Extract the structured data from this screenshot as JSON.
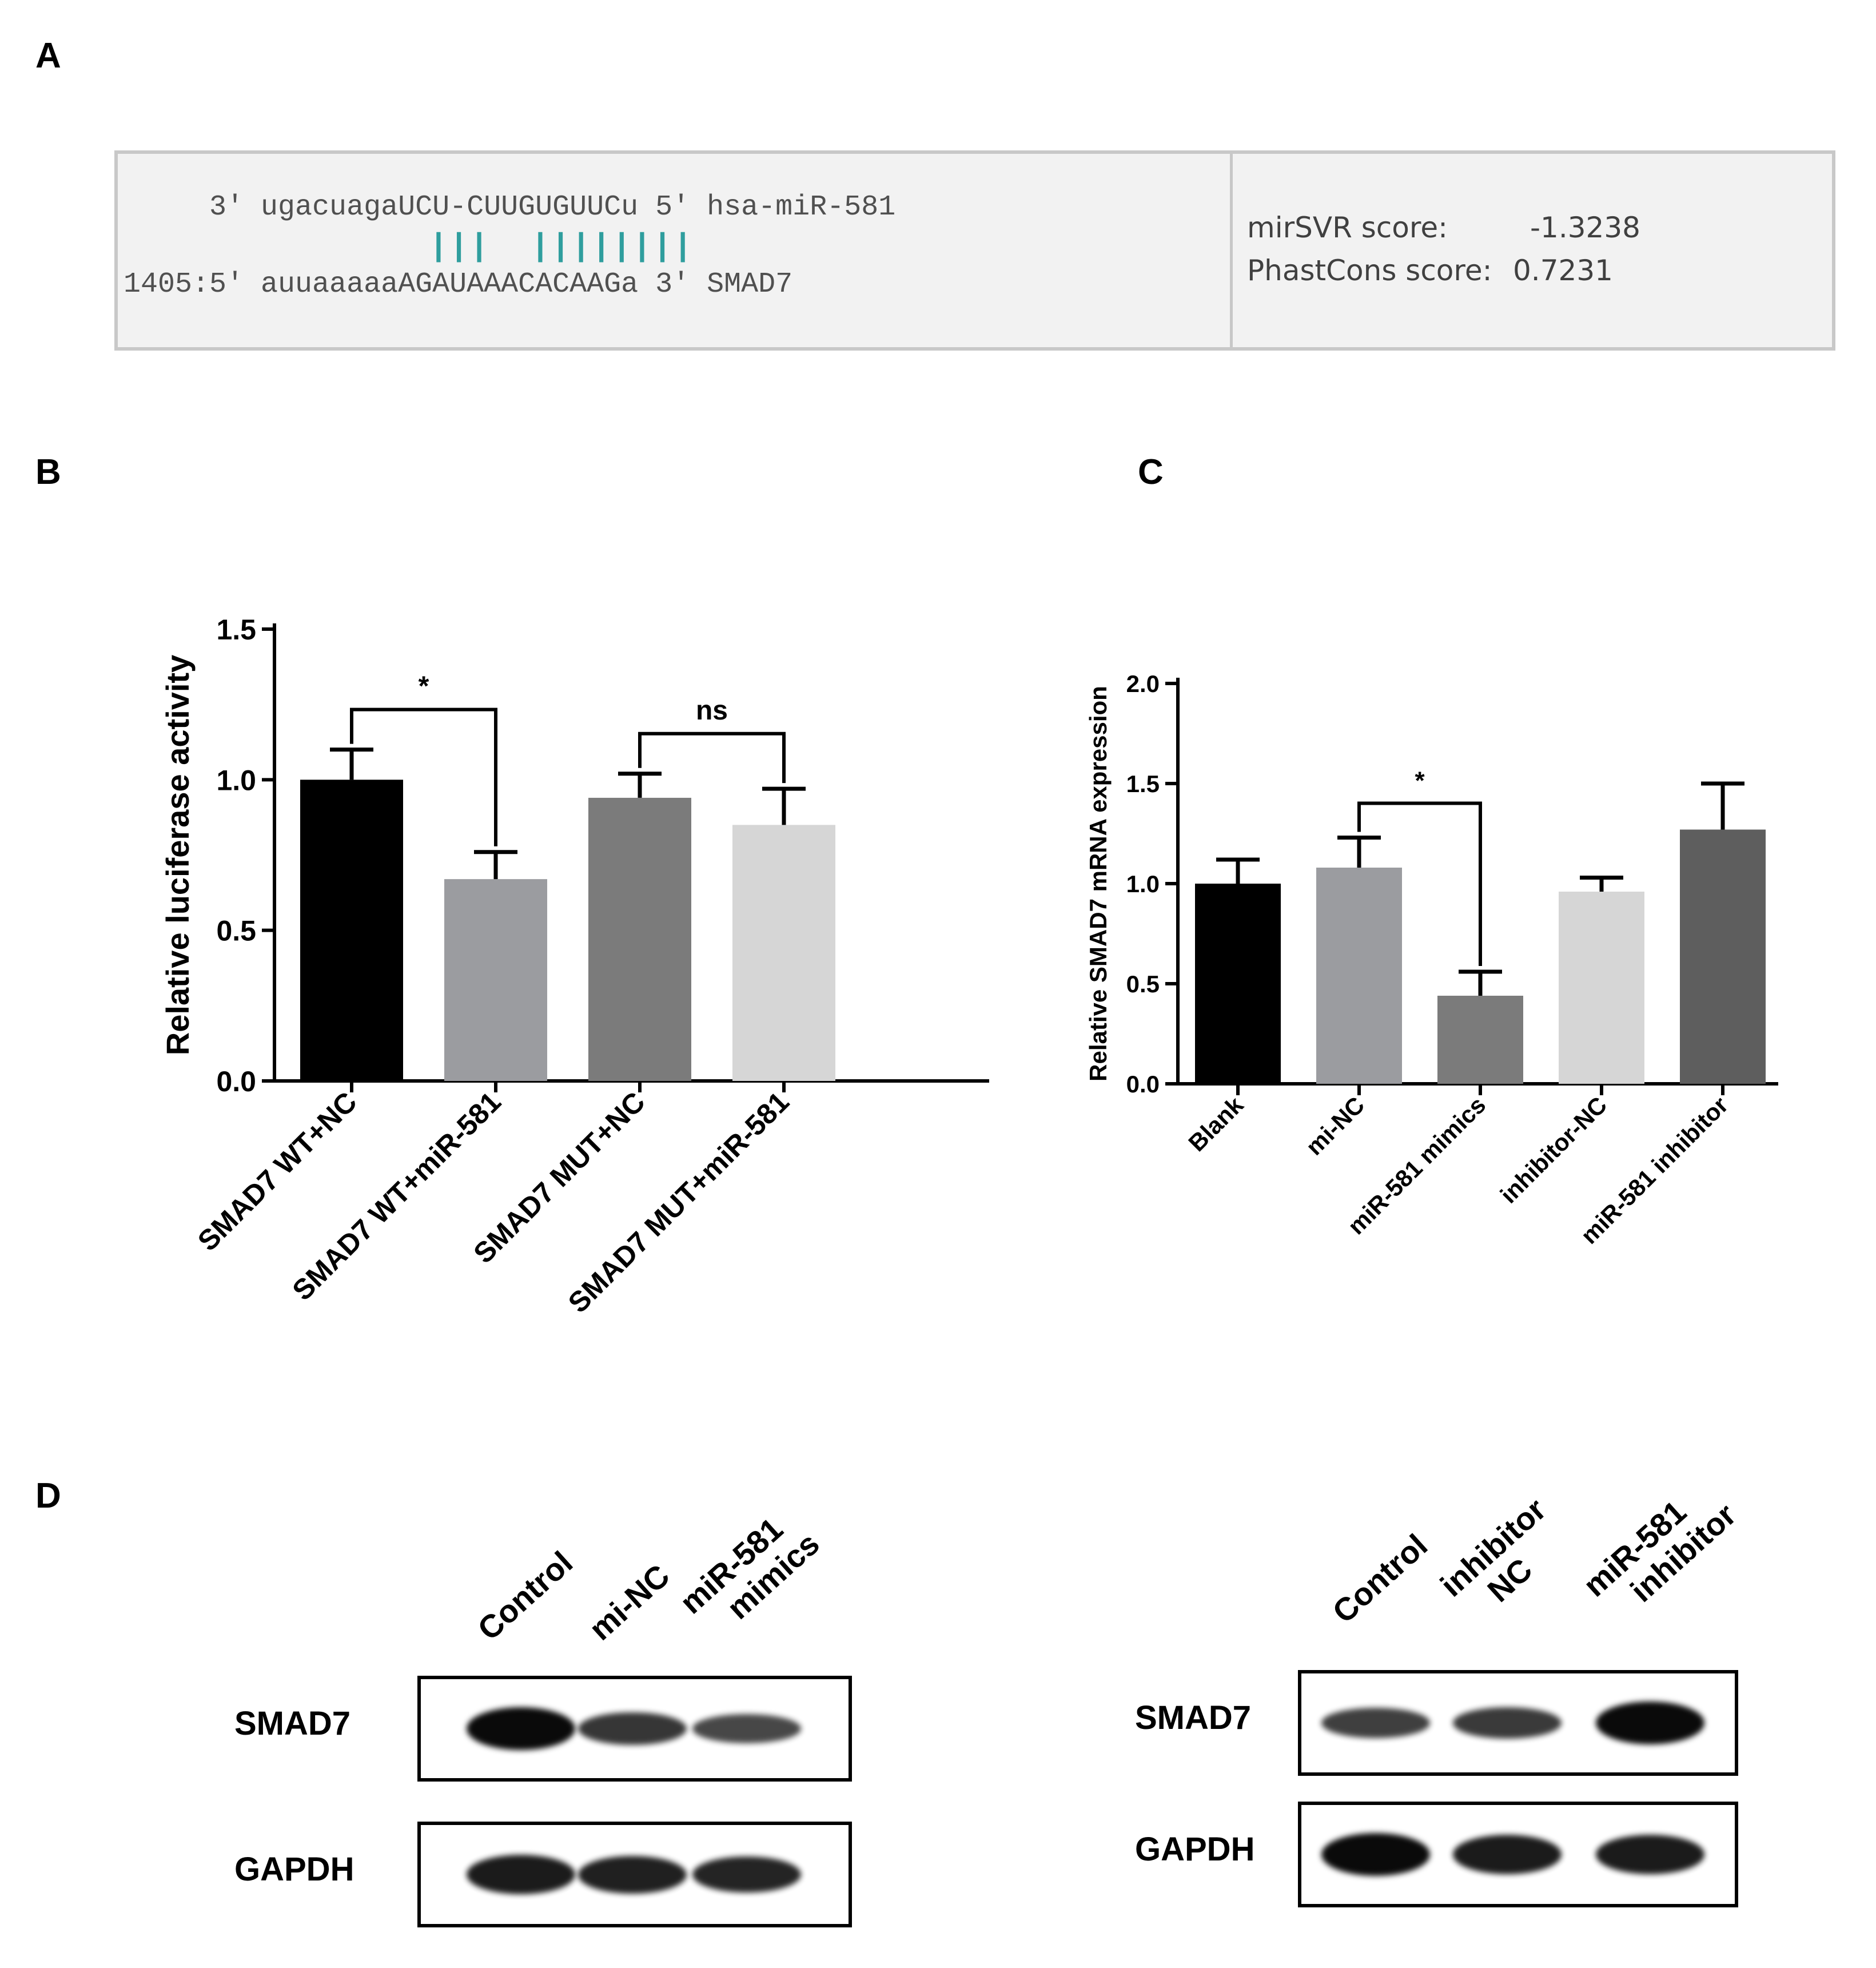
{
  "panels": {
    "a": {
      "letter": "A",
      "line1": "     3' ugacuagaUCU-CUUGUGUUCu 5' hsa-miR-581",
      "pairs": "               |||  ||||||||",
      "line2": "1405:5' auuaaaaaAGAUAAACACAAGa 3' SMAD7",
      "mirsvr_label": "mirSVR score:",
      "mirsvr_value": "-1.3238",
      "phastcons_label": "PhastCons score:",
      "phastcons_value": "0.7231"
    },
    "b": {
      "letter": "B"
    },
    "c": {
      "letter": "C"
    },
    "d": {
      "letter": "D"
    }
  },
  "chart_data": [
    {
      "type": "bar",
      "ylabel": "Relative luciferase activity",
      "ylim": [
        0,
        1.5
      ],
      "yticks": [
        "0.0",
        "0.5",
        "1.0",
        "1.5"
      ],
      "categories": [
        "SMAD7 WT+NC",
        "SMAD7 WT+miR-581",
        "SMAD7 MUT+NC",
        "SMAD7 MUT+miR-581"
      ],
      "values": [
        1.0,
        0.67,
        0.94,
        0.85
      ],
      "errors": [
        0.1,
        0.09,
        0.08,
        0.12
      ],
      "colors": [
        "#000000",
        "#9b9ca0",
        "#7b7b7b",
        "#d6d6d6"
      ],
      "annotations": [
        {
          "from": 0,
          "to": 1,
          "label": "*"
        },
        {
          "from": 2,
          "to": 3,
          "label": "ns"
        }
      ]
    },
    {
      "type": "bar",
      "ylabel": "Relative SMAD7 mRNA expression",
      "ylim": [
        0,
        2.0
      ],
      "yticks": [
        "0.0",
        "0.5",
        "1.0",
        "1.5",
        "2.0"
      ],
      "categories": [
        "Blank",
        "mi-NC",
        "miR-581 mimics",
        "inhibitor-NC",
        "miR-581 inhibitor"
      ],
      "values": [
        1.0,
        1.08,
        0.44,
        0.96,
        1.27
      ],
      "errors": [
        0.12,
        0.15,
        0.12,
        0.07,
        0.23
      ],
      "colors": [
        "#000000",
        "#9b9ca0",
        "#7b7b7b",
        "#d6d6d6",
        "#5e5e5e"
      ],
      "annotations": [
        {
          "from": 1,
          "to": 2,
          "label": "*"
        }
      ]
    }
  ],
  "blots": {
    "left": {
      "lanes": [
        "Control",
        "mi-NC",
        "miR-581\nmimics"
      ],
      "rows": [
        "SMAD7",
        "GAPDH"
      ],
      "intensity": {
        "SMAD7": [
          1.0,
          0.6,
          0.45
        ],
        "GAPDH": [
          0.85,
          0.8,
          0.75
        ]
      }
    },
    "right": {
      "lanes": [
        "Control",
        "inhibitor\nNC",
        "miR-581\ninhibitor"
      ],
      "rows": [
        "SMAD7",
        "GAPDH"
      ],
      "intensity": {
        "SMAD7": [
          0.5,
          0.55,
          1.0
        ],
        "GAPDH": [
          1.0,
          0.85,
          0.85
        ]
      }
    }
  }
}
